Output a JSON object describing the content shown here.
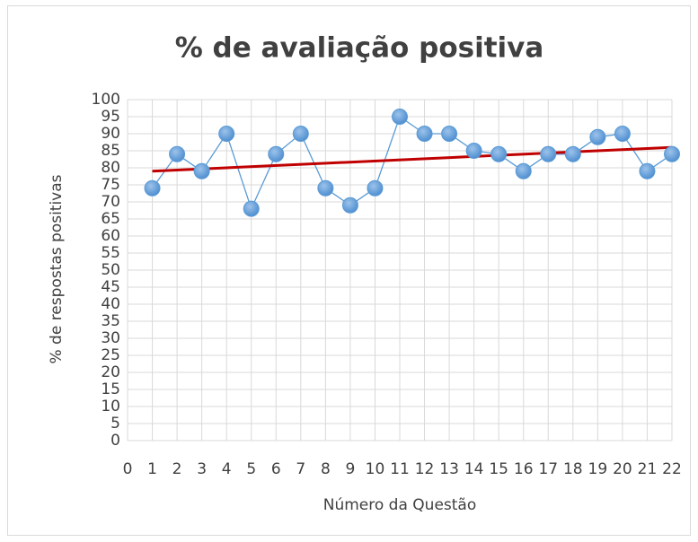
{
  "chart_data": {
    "type": "line",
    "title": "% de avaliação positiva",
    "xlabel": "Número da Questão",
    "ylabel": "% de respostas positivas",
    "x": [
      1,
      2,
      3,
      4,
      5,
      6,
      7,
      8,
      9,
      10,
      11,
      12,
      13,
      14,
      15,
      16,
      17,
      18,
      19,
      20,
      21,
      22
    ],
    "series": [
      {
        "name": "% de avaliação positiva",
        "color": "#5b9bd5",
        "values": [
          74,
          84,
          79,
          90,
          68,
          84,
          90,
          74,
          69,
          74,
          95,
          90,
          90,
          85,
          84,
          79,
          84,
          84,
          89,
          90,
          79,
          84
        ]
      }
    ],
    "trendline": {
      "x": [
        1,
        22
      ],
      "values": [
        79,
        86
      ],
      "color": "#c00000"
    },
    "xlim": [
      0,
      22
    ],
    "xticks": [
      0,
      1,
      2,
      3,
      4,
      5,
      6,
      7,
      8,
      9,
      10,
      11,
      12,
      13,
      14,
      15,
      16,
      17,
      18,
      19,
      20,
      21,
      22
    ],
    "ylim": [
      0,
      100
    ],
    "yticks": [
      0,
      5,
      10,
      15,
      20,
      25,
      30,
      35,
      40,
      45,
      50,
      55,
      60,
      65,
      70,
      75,
      80,
      85,
      90,
      95,
      100
    ],
    "grid": true
  }
}
